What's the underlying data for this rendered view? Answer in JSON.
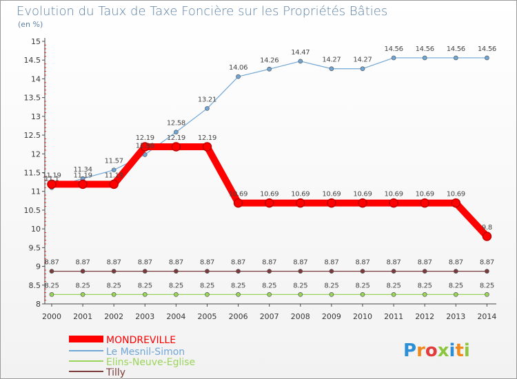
{
  "chart_data": {
    "type": "line",
    "title": "Evolution du Taux de Taxe Foncière sur les Propriétés Bâties",
    "subtitle": "(en %)",
    "x": [
      "2000",
      "2001",
      "2002",
      "2003",
      "2004",
      "2005",
      "2006",
      "2007",
      "2008",
      "2009",
      "2010",
      "2011",
      "2012",
      "2013",
      "2014"
    ],
    "ylim": [
      8,
      15
    ],
    "yticks": [
      "8",
      "8.5",
      "9",
      "9.5",
      "10",
      "10.5",
      "11",
      "11.5",
      "12",
      "12.5",
      "13",
      "13.5",
      "14",
      "14.5",
      "15"
    ],
    "grid": false,
    "legend_position": "bottom-left",
    "series": [
      {
        "name": "MONDREVILLE",
        "color": "#ff0000",
        "values": [
          11.19,
          11.19,
          11.19,
          12.19,
          12.19,
          12.19,
          10.69,
          10.69,
          10.69,
          10.69,
          10.69,
          10.69,
          10.69,
          10.69,
          9.8
        ],
        "labels": [
          "11.19",
          "11.19",
          "11.19",
          "12.19",
          "12.19",
          "12.19",
          "10.69",
          "10.69",
          "10.69",
          "10.69",
          "10.69",
          "10.69",
          "10.69",
          "10.69",
          "9.8"
        ]
      },
      {
        "name": "Le Mesnil-Simon",
        "color": "#6fa6d6",
        "values": [
          11.1,
          11.34,
          11.57,
          11.98,
          12.58,
          13.21,
          14.06,
          14.26,
          14.47,
          14.27,
          14.27,
          14.56,
          14.56,
          14.56,
          14.56
        ],
        "labels": [
          "11.1",
          "11.34",
          "11.57",
          "11.98",
          "12.58",
          "13.21",
          "14.06",
          "14.26",
          "14.47",
          "14.27",
          "14.27",
          "14.56",
          "14.56",
          "14.56",
          "14.56"
        ]
      },
      {
        "name": "Elins-Neuve-Eglise",
        "color": "#9bd45a",
        "values": [
          8.25,
          8.25,
          8.25,
          8.25,
          8.25,
          8.25,
          8.25,
          8.25,
          8.25,
          8.25,
          8.25,
          8.25,
          8.25,
          8.25,
          8.25
        ],
        "labels": [
          "8.25",
          "8.25",
          "8.25",
          "8.25",
          "8.25",
          "8.25",
          "8.25",
          "8.25",
          "8.25",
          "8.25",
          "8.25",
          "8.25",
          "8.25",
          "8.25",
          "8.25"
        ]
      },
      {
        "name": "Tilly",
        "color": "#7a3a3a",
        "values": [
          8.87,
          8.87,
          8.87,
          8.87,
          8.87,
          8.87,
          8.87,
          8.87,
          8.87,
          8.87,
          8.87,
          8.87,
          8.87,
          8.87,
          8.87
        ],
        "labels": [
          "8.87",
          "8.87",
          "8.87",
          "8.87",
          "8.87",
          "8.87",
          "8.87",
          "8.87",
          "8.87",
          "8.87",
          "8.87",
          "8.87",
          "8.87",
          "8.87",
          "8.87"
        ]
      }
    ]
  },
  "logo": {
    "text": "Proxiti",
    "colors": [
      "#2c8fd6",
      "#f08a1c",
      "#e23b3b",
      "#8cc63f",
      "#2c8fd6",
      "#f08a1c",
      "#8cc63f"
    ]
  }
}
